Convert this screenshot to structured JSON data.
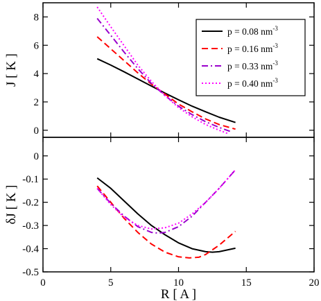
{
  "chart_data": [
    {
      "type": "line",
      "panel": "top",
      "ylabel": "J  [ K ]",
      "xlim": [
        0,
        20
      ],
      "ylim": [
        -0.5,
        9
      ],
      "xticks": [
        0,
        5,
        10,
        15,
        20
      ],
      "xtick_labels_shown": false,
      "yticks": [
        0,
        2,
        4,
        6,
        8
      ],
      "legend": {
        "placement": "top-right",
        "box": true
      },
      "series": [
        {
          "name": "p = 0.08 nm-3",
          "label": "p = 0.08 nm",
          "sup": "-3",
          "color": "#000000",
          "dash": "",
          "width": 2,
          "x": [
            4,
            5,
            6,
            7,
            8,
            9,
            10,
            11,
            12,
            13,
            14.2
          ],
          "y": [
            5.05,
            4.6,
            4.12,
            3.62,
            3.12,
            2.62,
            2.15,
            1.7,
            1.3,
            0.92,
            0.55
          ]
        },
        {
          "name": "p = 0.16 nm-3",
          "label": "p = 0.16 nm",
          "sup": "-3",
          "color": "#ff0000",
          "dash": "9,5",
          "width": 2,
          "x": [
            4,
            5,
            6,
            7,
            8,
            9,
            10,
            11,
            12,
            13,
            14.2
          ],
          "y": [
            6.6,
            5.75,
            4.9,
            4.05,
            3.25,
            2.55,
            1.85,
            1.3,
            0.8,
            0.4,
            0.08
          ]
        },
        {
          "name": "p = 0.33 nm-3",
          "label": "p = 0.33 nm",
          "sup": "-3",
          "color": "#9900cc",
          "dash": "9,4,2,4",
          "width": 2,
          "x": [
            4,
            5,
            6,
            7,
            8,
            9,
            10,
            11,
            12,
            13,
            13.8
          ],
          "y": [
            7.9,
            6.7,
            5.5,
            4.35,
            3.3,
            2.45,
            1.7,
            1.1,
            0.6,
            0.2,
            -0.08
          ]
        },
        {
          "name": "p = 0.40 nm-3",
          "label": "p = 0.40 nm",
          "sup": "-3",
          "color": "#ff00ff",
          "dash": "2,3",
          "width": 2,
          "x": [
            4,
            5,
            6,
            7,
            8,
            9,
            10,
            11,
            12,
            13,
            13.6
          ],
          "y": [
            8.7,
            7.3,
            5.95,
            4.6,
            3.45,
            2.45,
            1.6,
            0.95,
            0.4,
            0.0,
            -0.22
          ]
        }
      ]
    },
    {
      "type": "line",
      "panel": "bottom",
      "xlabel": "R  [ A ]",
      "ylabel": "δJ  [ K ]",
      "xlim": [
        0,
        20
      ],
      "ylim": [
        -0.5,
        0.08
      ],
      "xticks": [
        0,
        5,
        10,
        15,
        20
      ],
      "yticks": [
        0,
        -0.1,
        -0.2,
        -0.3,
        -0.4,
        -0.5
      ],
      "series": [
        {
          "name": "p = 0.08 nm-3",
          "color": "#000000",
          "dash": "",
          "width": 2,
          "x": [
            4,
            5,
            6,
            7,
            8,
            9,
            10,
            11,
            12,
            12.5,
            13,
            14.2
          ],
          "y": [
            -0.095,
            -0.14,
            -0.195,
            -0.25,
            -0.3,
            -0.34,
            -0.375,
            -0.4,
            -0.413,
            -0.415,
            -0.413,
            -0.398
          ]
        },
        {
          "name": "p = 0.16 nm-3",
          "color": "#ff0000",
          "dash": "9,5",
          "width": 2,
          "x": [
            4,
            5,
            6,
            7,
            8,
            9,
            10,
            10.8,
            11.5,
            12,
            13,
            14.2
          ],
          "y": [
            -0.13,
            -0.2,
            -0.27,
            -0.33,
            -0.38,
            -0.415,
            -0.435,
            -0.44,
            -0.437,
            -0.425,
            -0.385,
            -0.325
          ]
        },
        {
          "name": "p = 0.33 nm-3",
          "color": "#9900cc",
          "dash": "9,4,2,4",
          "width": 2,
          "x": [
            4,
            5,
            6,
            7,
            8,
            8.5,
            9,
            10,
            11,
            12,
            13,
            14.2
          ],
          "y": [
            -0.14,
            -0.205,
            -0.26,
            -0.305,
            -0.33,
            -0.333,
            -0.33,
            -0.305,
            -0.26,
            -0.2,
            -0.14,
            -0.06
          ]
        },
        {
          "name": "p = 0.40 nm-3",
          "color": "#ff00ff",
          "dash": "2,3",
          "width": 2,
          "x": [
            4,
            5,
            6,
            7,
            8,
            9,
            10,
            11,
            12,
            13,
            14.2
          ],
          "y": [
            -0.14,
            -0.21,
            -0.265,
            -0.3,
            -0.315,
            -0.31,
            -0.29,
            -0.25,
            -0.2,
            -0.14,
            -0.06
          ]
        }
      ]
    }
  ]
}
